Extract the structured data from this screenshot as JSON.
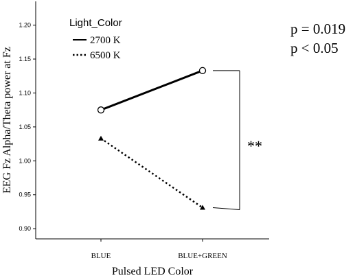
{
  "chart_data": {
    "type": "line",
    "categories": [
      "BLUE",
      "BLUE+GREEN"
    ],
    "series": [
      {
        "name": "2700 K",
        "values": [
          1.075,
          1.133
        ],
        "marker": "circle",
        "line": "solid"
      },
      {
        "name": "6500 K",
        "values": [
          1.033,
          0.931
        ],
        "marker": "triangle",
        "line": "dotted"
      }
    ],
    "xlabel": "Pulsed LED Color",
    "ylabel": "EEG Fz Alpha/Theta power at Fz",
    "ylim": [
      0.885,
      1.235
    ],
    "yticks": [
      0.9,
      0.95,
      1.0,
      1.05,
      1.1,
      1.15,
      1.2
    ],
    "ytick_labels": [
      "0.90",
      "0.95",
      "1.00",
      "1.05",
      "1.10",
      "1.15",
      "1.20"
    ],
    "legend_title": "Light_Color",
    "legend_position": "top-left",
    "annotations": {
      "significance": "**",
      "p_value": "p = 0.019",
      "p_threshold": "p < 0.05"
    },
    "grid": false
  },
  "colors": {
    "line": "#000000",
    "background": "#ffffff"
  }
}
